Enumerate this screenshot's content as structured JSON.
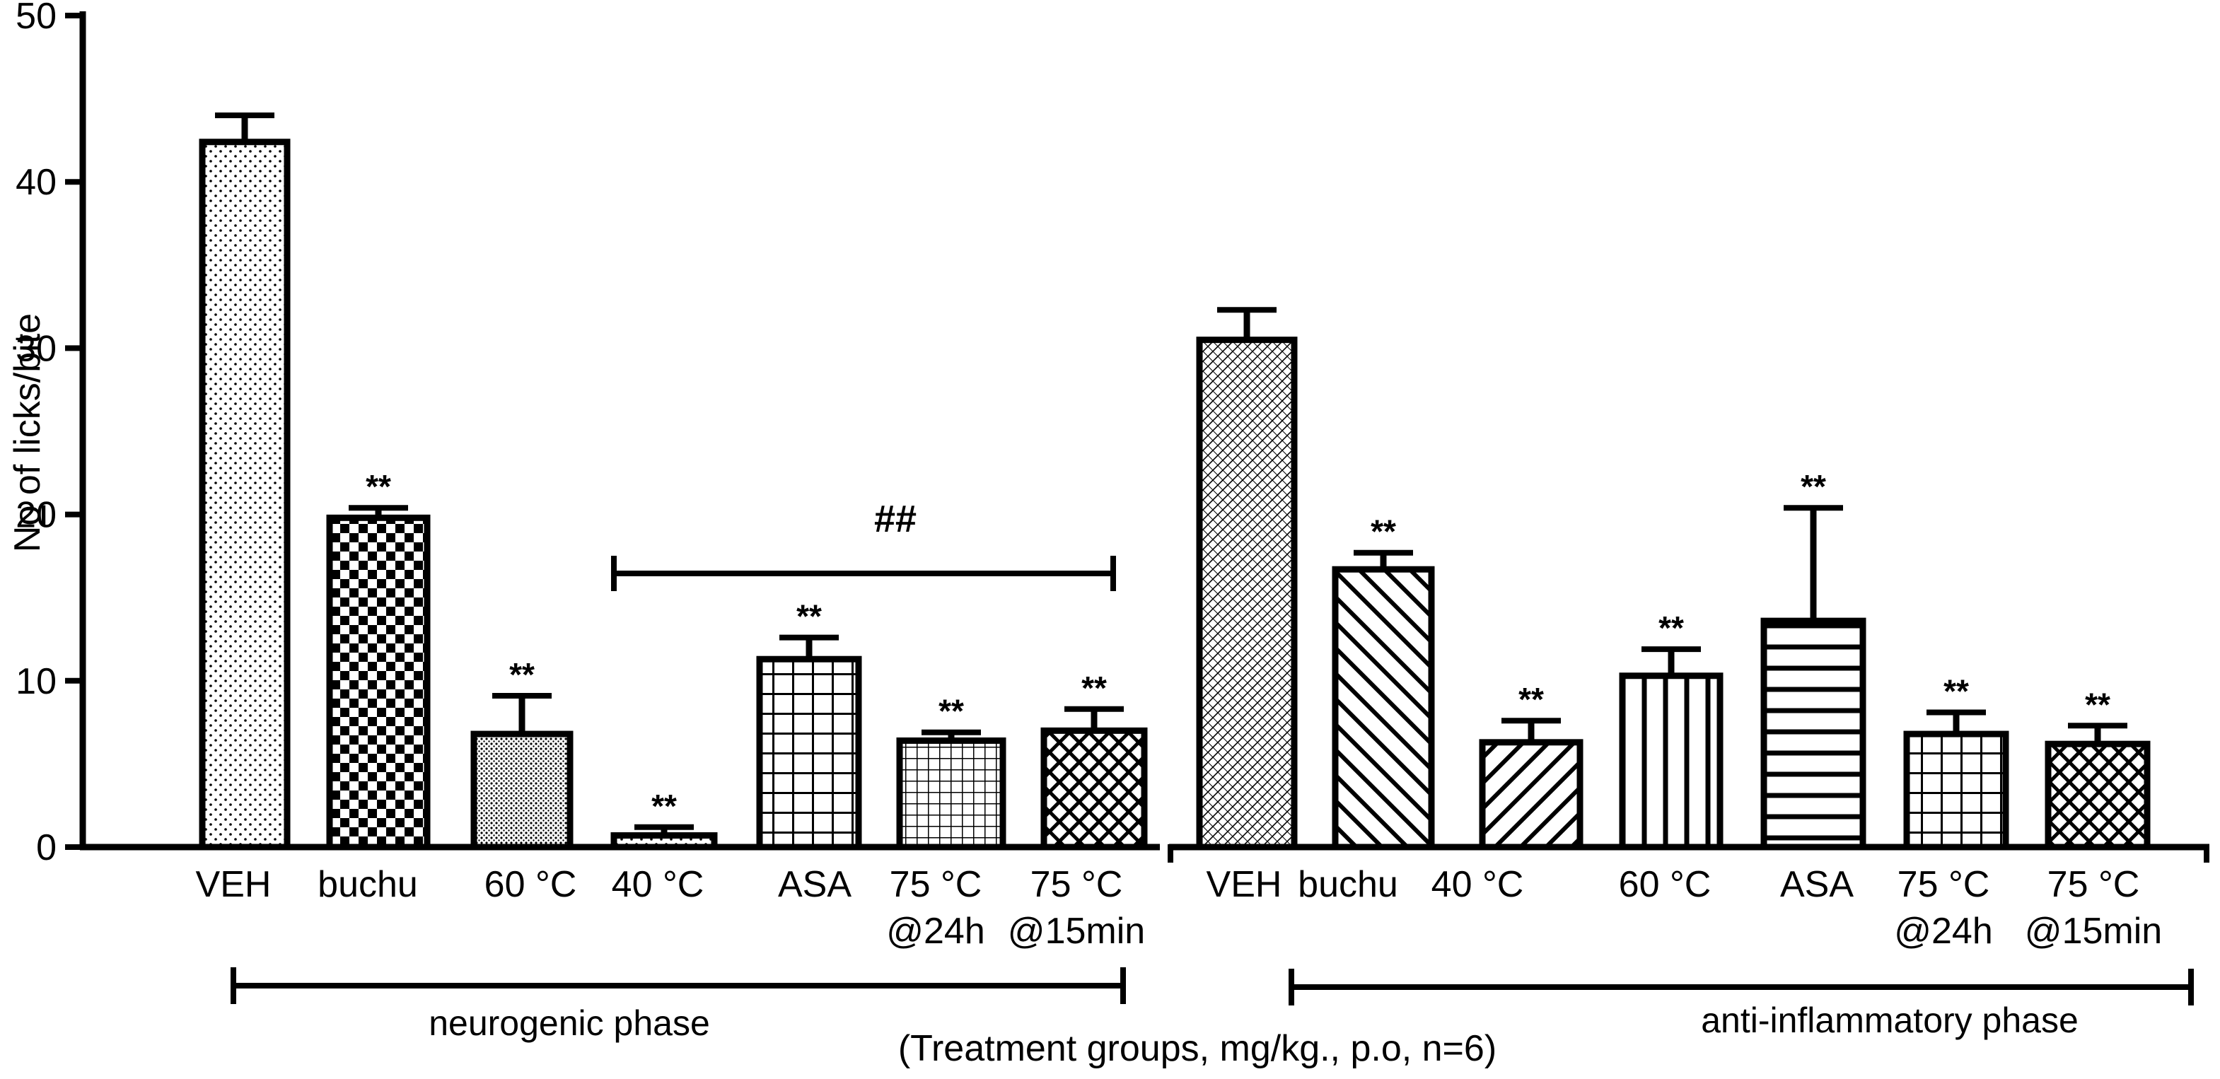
{
  "chart_data": {
    "type": "bar",
    "title": "",
    "ylabel": "No of licks/bite",
    "ylabel_parts": [
      "N",
      "o",
      " of licks/bite"
    ],
    "xlabel": "(Treatment groups, mg/kg., p.o, n=6)",
    "ylim": [
      0,
      50
    ],
    "yticks": [
      0,
      10,
      20,
      30,
      40,
      50
    ],
    "error_bars": "upper",
    "bars": [
      {
        "group": "neurogenic",
        "label": [
          "VEH"
        ],
        "value": 42.4,
        "error": 1.6,
        "pattern": "dots",
        "sig": ""
      },
      {
        "group": "neurogenic",
        "label": [
          "buchu"
        ],
        "value": 19.8,
        "error": 0.6,
        "pattern": "checker",
        "sig": "**"
      },
      {
        "group": "neurogenic",
        "label": [
          "60 °C"
        ],
        "value": 6.8,
        "error": 2.3,
        "pattern": "fine-dots",
        "sig": "**"
      },
      {
        "group": "neurogenic",
        "label": [
          "40 °C"
        ],
        "value": 0.7,
        "error": 0.5,
        "pattern": "dots",
        "sig": "**"
      },
      {
        "group": "neurogenic",
        "label": [
          "ASA"
        ],
        "value": 11.3,
        "error": 1.3,
        "pattern": "grid",
        "sig": "**"
      },
      {
        "group": "neurogenic",
        "label": [
          "75 °C",
          "@24h"
        ],
        "value": 6.4,
        "error": 0.5,
        "pattern": "fine-grid",
        "sig": "**"
      },
      {
        "group": "neurogenic",
        "label": [
          "75 °C",
          "@15min"
        ],
        "value": 7.0,
        "error": 1.3,
        "pattern": "crosshatch",
        "sig": "**"
      },
      {
        "group": "anti-inflammatory",
        "label": [
          "VEH"
        ],
        "value": 30.5,
        "error": 1.8,
        "pattern": "basket",
        "sig": ""
      },
      {
        "group": "anti-inflammatory",
        "label": [
          "buchu"
        ],
        "value": 16.7,
        "error": 1.0,
        "pattern": "diag-back",
        "sig": "**"
      },
      {
        "group": "anti-inflammatory",
        "label": [
          "40 °C"
        ],
        "value": 6.3,
        "error": 1.3,
        "pattern": "diag-fwd",
        "sig": "**"
      },
      {
        "group": "anti-inflammatory",
        "label": [
          "60 °C"
        ],
        "value": 10.3,
        "error": 1.6,
        "pattern": "vertical",
        "sig": "**"
      },
      {
        "group": "anti-inflammatory",
        "label": [
          "ASA"
        ],
        "value": 13.6,
        "error": 6.8,
        "pattern": "horizontal",
        "sig": "**"
      },
      {
        "group": "anti-inflammatory",
        "label": [
          "75 °C",
          "@24h"
        ],
        "value": 6.8,
        "error": 1.3,
        "pattern": "grid",
        "sig": "**"
      },
      {
        "group": "anti-inflammatory",
        "label": [
          "75 °C",
          "@15min"
        ],
        "value": 6.2,
        "error": 1.1,
        "pattern": "crosshatch",
        "sig": "**"
      }
    ],
    "annotation": {
      "text": "##",
      "from_bar": 3,
      "to_bar": 6
    },
    "phases": [
      {
        "name": "neurogenic phase",
        "from_bar": 0,
        "to_bar": 6
      },
      {
        "name": "anti-inflammatory phase",
        "from_bar": 7,
        "to_bar": 13
      }
    ]
  }
}
